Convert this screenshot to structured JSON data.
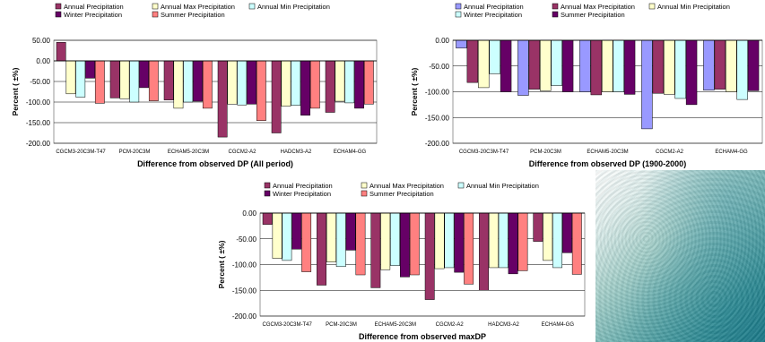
{
  "colors": {
    "Annual Precipitation": "#9999ff",
    "Annual Max Precipitation": "#993366",
    "Annual Min Precipitation": "#ffffcc",
    "Winter Precipitation": "#ccffff",
    "Summer Precipitation": "#660066",
    "extra": "#ff8080"
  },
  "chart_data": [
    {
      "type": "bar",
      "xlabel": "Difference from observed DP (All period)",
      "ylabel": "Percent  ( ±%)",
      "ylim": [
        -200,
        50
      ],
      "yticks": [
        "50.00",
        "0.00",
        "-50.00",
        "-100.00",
        "-150.00",
        "-200.00"
      ],
      "grid": true,
      "legend_position": "top",
      "legend": [
        {
          "name": "Annual Precipitation",
          "color": "#993366"
        },
        {
          "name": "Annual Max Precipitation",
          "color": "#ffffcc"
        },
        {
          "name": "Annual Min Precipitation",
          "color": "#ccffff"
        },
        {
          "name": "Winter Precipitation",
          "color": "#660066"
        },
        {
          "name": "Summer Precipitation",
          "color": "#ff8080"
        }
      ],
      "categories": [
        "CGCM3-20C3M-T47",
        "PCM-20C3M",
        "ECHAM5-20C3M",
        "CGCM2-A2",
        "HADCM3-A2",
        "ECHAM4-GG"
      ],
      "series": [
        {
          "name": "Annual Precipitation",
          "color": "#993366",
          "values": [
            45,
            -90,
            -95,
            -185,
            -175,
            -125
          ]
        },
        {
          "name": "Annual Max Precipitation",
          "color": "#ffffcc",
          "values": [
            -80,
            -92,
            -115,
            -105,
            -110,
            -98
          ]
        },
        {
          "name": "Annual Min Precipitation",
          "color": "#ccffff",
          "values": [
            -88,
            -100,
            -100,
            -107,
            -108,
            -102
          ]
        },
        {
          "name": "Winter Precipitation",
          "color": "#660066",
          "values": [
            -42,
            -65,
            -98,
            -105,
            -132,
            -115
          ]
        },
        {
          "name": "Summer Precipitation",
          "color": "#ff8080",
          "values": [
            -103,
            -97,
            -115,
            -145,
            -115,
            -105
          ]
        }
      ]
    },
    {
      "type": "bar",
      "xlabel": "Difference from observed DP (1900-2000)",
      "ylabel": "Percent  ( ±%)",
      "ylim": [
        -200,
        0
      ],
      "yticks": [
        "0.00",
        "-50.00",
        "-100.00",
        "-150.00",
        "-200.00"
      ],
      "grid": true,
      "legend_position": "top",
      "legend": [
        {
          "name": "Annual Precipitation",
          "color": "#9999ff"
        },
        {
          "name": "Annual Max Precipitation",
          "color": "#993366"
        },
        {
          "name": "Annual Min Precipitation",
          "color": "#ffffcc"
        },
        {
          "name": "Winter Precipitation",
          "color": "#ccffff"
        },
        {
          "name": "Summer Precipitation",
          "color": "#660066"
        }
      ],
      "categories": [
        "CGCM3-20C3M-T47",
        "PCM-20C3M",
        "ECHAM5-20C3M",
        "CGCM2-A2",
        "ECHAM4-GG"
      ],
      "series": [
        {
          "name": "Annual Precipitation",
          "color": "#9999ff",
          "values": [
            -15,
            -107,
            -100,
            -172,
            -97
          ]
        },
        {
          "name": "Annual Max Precipitation",
          "color": "#993366",
          "values": [
            -82,
            -95,
            -106,
            -103,
            -95
          ]
        },
        {
          "name": "Annual Min Precipitation",
          "color": "#ffffcc",
          "values": [
            -92,
            -98,
            -100,
            -105,
            -100
          ]
        },
        {
          "name": "Winter Precipitation",
          "color": "#ccffff",
          "values": [
            -65,
            -88,
            -100,
            -113,
            -115
          ]
        },
        {
          "name": "Summer Precipitation",
          "color": "#660066",
          "values": [
            -100,
            -100,
            -105,
            -125,
            -98
          ]
        }
      ]
    },
    {
      "type": "bar",
      "xlabel": "Difference from observed maxDP",
      "ylabel": "Percent  ( ±%)",
      "ylim": [
        -200,
        0
      ],
      "yticks": [
        "0.00",
        "-50.00",
        "-100.00",
        "-150.00",
        "-200.00"
      ],
      "grid": true,
      "legend_position": "top",
      "legend": [
        {
          "name": "Annual Precipitation",
          "color": "#993366"
        },
        {
          "name": "Annual Max Precipitation",
          "color": "#ffffcc"
        },
        {
          "name": "Annual Min Precipitation",
          "color": "#ccffff"
        },
        {
          "name": "Winter Precipitation",
          "color": "#660066"
        },
        {
          "name": "Summer Precipitation",
          "color": "#ff8080"
        }
      ],
      "categories": [
        "CGCM3-20C3M-T47",
        "PCM-20C3M",
        "ECHAM5-20C3M",
        "CGCM2-A2",
        "HADCM3-A2",
        "ECHAM4-GG"
      ],
      "series": [
        {
          "name": "Annual Precipitation",
          "color": "#993366",
          "values": [
            -22,
            -140,
            -145,
            -168,
            -150,
            -55
          ]
        },
        {
          "name": "Annual Max Precipitation",
          "color": "#ffffcc",
          "values": [
            -88,
            -95,
            -110,
            -108,
            -106,
            -92
          ]
        },
        {
          "name": "Annual Min Precipitation",
          "color": "#ccffff",
          "values": [
            -92,
            -104,
            -102,
            -106,
            -106,
            -106
          ]
        },
        {
          "name": "Winter Precipitation",
          "color": "#660066",
          "values": [
            -70,
            -72,
            -124,
            -115,
            -118,
            -77
          ]
        },
        {
          "name": "Summer Precipitation",
          "color": "#ff8080",
          "values": [
            -114,
            -120,
            -120,
            -138,
            -112,
            -119
          ]
        }
      ]
    }
  ]
}
